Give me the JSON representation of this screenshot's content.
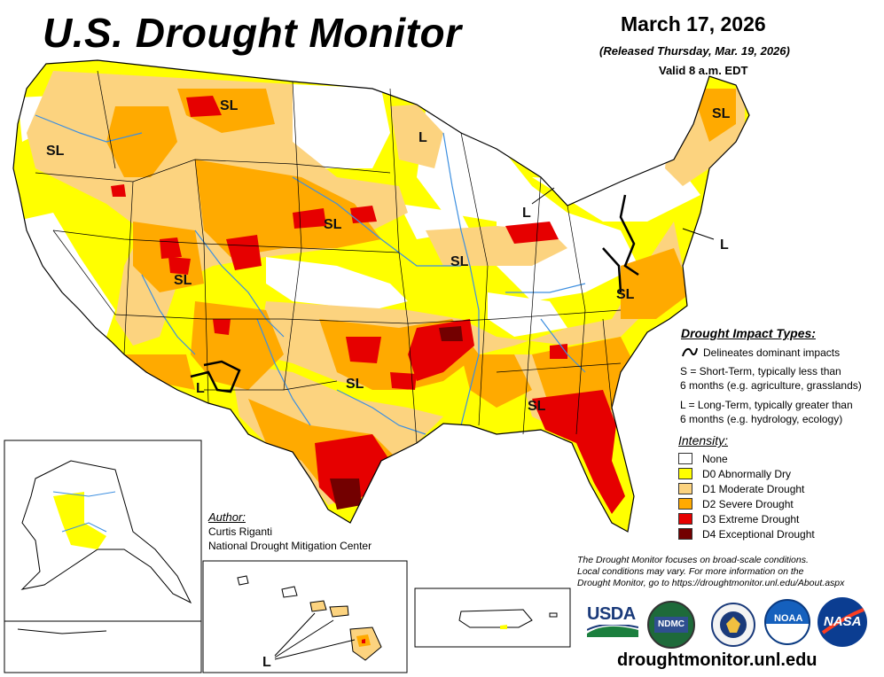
{
  "header": {
    "title": "U.S. Drought Monitor",
    "date": "March 17, 2026",
    "released": "(Released Thursday, Mar. 19, 2026)",
    "valid": "Valid 8 a.m. EDT"
  },
  "map_labels": {
    "sl": "SL",
    "l": "L"
  },
  "impact_types": {
    "title": "Drought Impact Types:",
    "delineates": "Delineates dominant impacts",
    "s_line1": "S = Short-Term, typically less than",
    "s_line2": "6 months (e.g. agriculture, grasslands)",
    "l_line1": "L = Long-Term, typically greater than",
    "l_line2": "6 months (e.g. hydrology, ecology)"
  },
  "intensity": {
    "title": "Intensity:",
    "items": [
      {
        "label": "None",
        "color": "#ffffff"
      },
      {
        "label": "D0 Abnormally Dry",
        "color": "#ffff00"
      },
      {
        "label": "D1 Moderate Drought",
        "color": "#fcd37f"
      },
      {
        "label": "D2 Severe Drought",
        "color": "#ffaa00"
      },
      {
        "label": "D3 Extreme Drought",
        "color": "#e60000"
      },
      {
        "label": "D4 Exceptional Drought",
        "color": "#730000"
      }
    ]
  },
  "author": {
    "heading": "Author:",
    "name": "Curtis Riganti",
    "org": "National Drought Mitigation Center"
  },
  "disclaimer": {
    "line1": "The Drought Monitor focuses on broad-scale conditions.",
    "line2": "Local conditions may vary. For more information on the",
    "line3": "Drought Monitor, go to https://droughtmonitor.unl.edu/About.aspx"
  },
  "logos": {
    "usda": "USDA",
    "ndmc": "NDMC",
    "noaa": "NOAA",
    "nasa": "NASA"
  },
  "website": "droughtmonitor.unl.edu",
  "colors": {
    "none": "#ffffff",
    "d0": "#ffff00",
    "d1": "#fcd37f",
    "d2": "#ffaa00",
    "d3": "#e60000",
    "d4": "#730000",
    "water": "#3d8fe0"
  }
}
